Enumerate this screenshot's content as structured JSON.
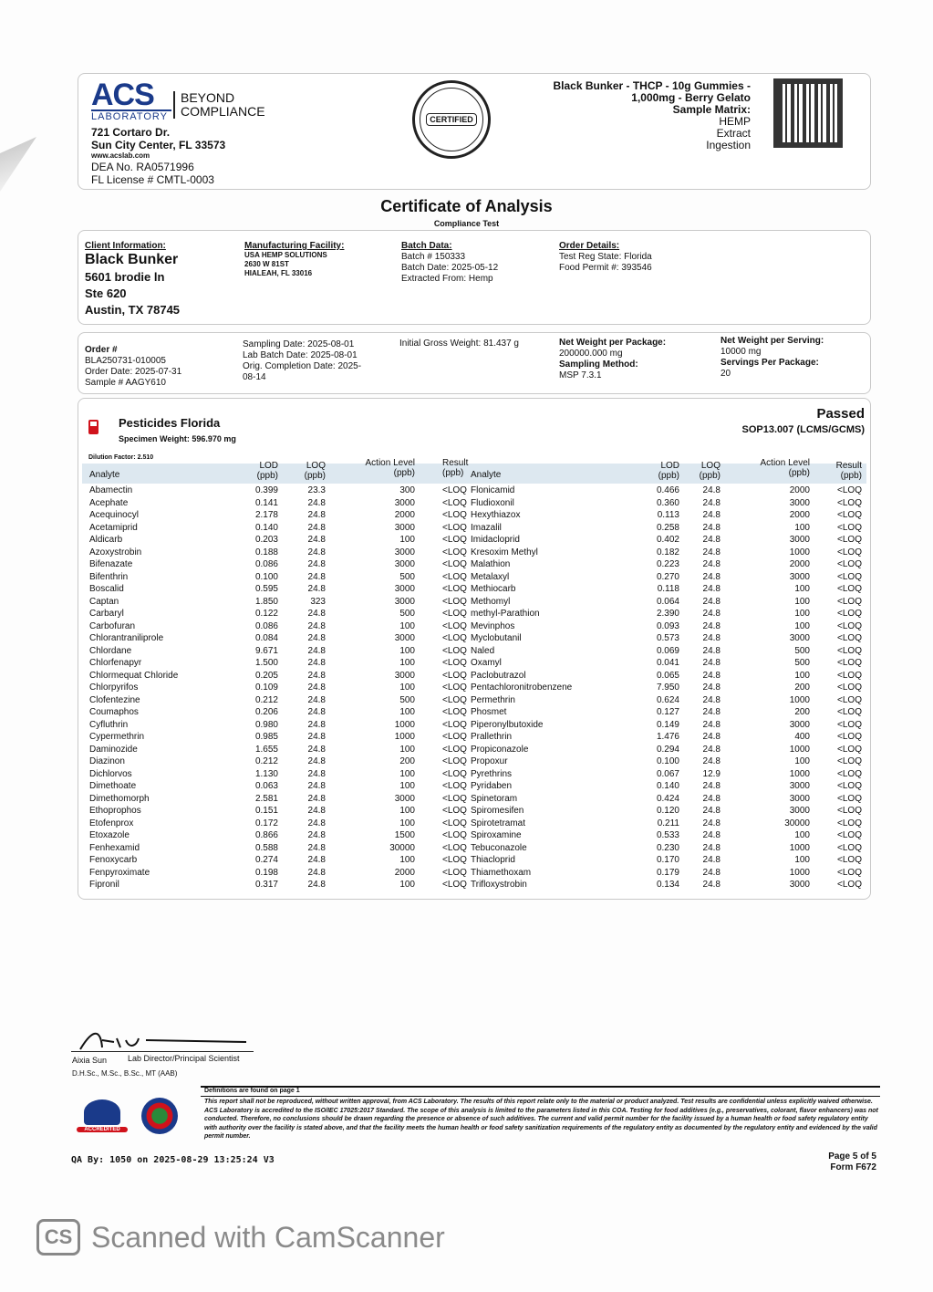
{
  "lab": {
    "logo_text": "ACS",
    "logo_sub": "LABORATORY",
    "tagline": "BEYOND COMPLIANCE",
    "address1": "721 Cortaro Dr.",
    "address2": "Sun City Center, FL 33573",
    "website": "www.acslab.com",
    "dea": "DEA No. RA0571996",
    "license": "FL License # CMTL-0003"
  },
  "seal": {
    "text": "TESTED SAFE CERTIFIED HEMP EDIBLE"
  },
  "product": {
    "name_line1": "Black Bunker - THCP - 10g Gummies -",
    "name_line2": "1,000mg - Berry Gelato",
    "matrix_label": "Sample Matrix:",
    "matrix1": "HEMP",
    "matrix2": "Extract",
    "matrix3": "Ingestion"
  },
  "doc": {
    "title": "Certificate of Analysis",
    "subtitle": "Compliance Test"
  },
  "client": {
    "label": "Client Information:",
    "name": "Black Bunker",
    "addr1": "5601 brodie ln",
    "addr2": "Ste 620",
    "addr3": "Austin, TX 78745"
  },
  "facility": {
    "label": "Manufacturing Facility:",
    "name": "USA HEMP SOLUTIONS",
    "addr1": "2630 W 81ST",
    "addr2": "HIALEAH, FL 33016"
  },
  "batch": {
    "label": "Batch Data:",
    "number": "Batch # 150333",
    "date": "Batch Date: 2025-05-12",
    "extracted": "Extracted From: Hemp"
  },
  "order_details": {
    "label": "Order Details:",
    "state": "Test Reg State: Florida",
    "permit": "Food Permit #: 393546"
  },
  "order": {
    "order_label": "Order #",
    "order_no": "BLA250731-010005",
    "order_date": "Order Date: 2025-07-31",
    "sample": "Sample # AAGY610",
    "sampling_date": "Sampling Date: 2025-08-01",
    "lab_batch_date": "Lab Batch Date: 2025-08-01",
    "completion1": "Orig. Completion Date: 2025-",
    "completion2": "08-14",
    "gross_weight": "Initial Gross Weight: 81.437 g",
    "net_pkg_label": "Net Weight per Package:",
    "net_pkg": "200000.000 mg",
    "sampling_method_label": "Sampling Method:",
    "sampling_method": "MSP 7.3.1",
    "net_serv_label": "Net Weight per Serving:",
    "net_serv": "10000 mg",
    "servings_label": "Servings Per Package:",
    "servings": "20"
  },
  "pesticides": {
    "title": "Pesticides Florida",
    "specimen": "Specimen Weight: 596.970 mg",
    "status": "Passed",
    "method": "SOP13.007 (LCMS/GCMS)",
    "dilution": "Dilution Factor: 2.510",
    "headers": {
      "analyte": "Analyte",
      "lod": "LOD",
      "loq": "LOQ",
      "action": "Action Level",
      "result": "Result",
      "unit": "(ppb)"
    },
    "left": [
      [
        "Abamectin",
        "0.399",
        "23.3",
        "300",
        "<LOQ"
      ],
      [
        "Acephate",
        "0.141",
        "24.8",
        "3000",
        "<LOQ"
      ],
      [
        "Acequinocyl",
        "2.178",
        "24.8",
        "2000",
        "<LOQ"
      ],
      [
        "Acetamiprid",
        "0.140",
        "24.8",
        "3000",
        "<LOQ"
      ],
      [
        "Aldicarb",
        "0.203",
        "24.8",
        "100",
        "<LOQ"
      ],
      [
        "Azoxystrobin",
        "0.188",
        "24.8",
        "3000",
        "<LOQ"
      ],
      [
        "Bifenazate",
        "0.086",
        "24.8",
        "3000",
        "<LOQ"
      ],
      [
        "Bifenthrin",
        "0.100",
        "24.8",
        "500",
        "<LOQ"
      ],
      [
        "Boscalid",
        "0.595",
        "24.8",
        "3000",
        "<LOQ"
      ],
      [
        "Captan",
        "1.850",
        "323",
        "3000",
        "<LOQ"
      ],
      [
        "Carbaryl",
        "0.122",
        "24.8",
        "500",
        "<LOQ"
      ],
      [
        "Carbofuran",
        "0.086",
        "24.8",
        "100",
        "<LOQ"
      ],
      [
        "Chlorantraniliprole",
        "0.084",
        "24.8",
        "3000",
        "<LOQ"
      ],
      [
        "Chlordane",
        "9.671",
        "24.8",
        "100",
        "<LOQ"
      ],
      [
        "Chlorfenapyr",
        "1.500",
        "24.8",
        "100",
        "<LOQ"
      ],
      [
        "Chlormequat Chloride",
        "0.205",
        "24.8",
        "3000",
        "<LOQ"
      ],
      [
        "Chlorpyrifos",
        "0.109",
        "24.8",
        "100",
        "<LOQ"
      ],
      [
        "Clofentezine",
        "0.212",
        "24.8",
        "500",
        "<LOQ"
      ],
      [
        "Coumaphos",
        "0.206",
        "24.8",
        "100",
        "<LOQ"
      ],
      [
        "Cyfluthrin",
        "0.980",
        "24.8",
        "1000",
        "<LOQ"
      ],
      [
        "Cypermethrin",
        "0.985",
        "24.8",
        "1000",
        "<LOQ"
      ],
      [
        "Daminozide",
        "1.655",
        "24.8",
        "100",
        "<LOQ"
      ],
      [
        "Diazinon",
        "0.212",
        "24.8",
        "200",
        "<LOQ"
      ],
      [
        "Dichlorvos",
        "1.130",
        "24.8",
        "100",
        "<LOQ"
      ],
      [
        "Dimethoate",
        "0.063",
        "24.8",
        "100",
        "<LOQ"
      ],
      [
        "Dimethomorph",
        "2.581",
        "24.8",
        "3000",
        "<LOQ"
      ],
      [
        "Ethoprophos",
        "0.151",
        "24.8",
        "100",
        "<LOQ"
      ],
      [
        "Etofenprox",
        "0.172",
        "24.8",
        "100",
        "<LOQ"
      ],
      [
        "Etoxazole",
        "0.866",
        "24.8",
        "1500",
        "<LOQ"
      ],
      [
        "Fenhexamid",
        "0.588",
        "24.8",
        "30000",
        "<LOQ"
      ],
      [
        "Fenoxycarb",
        "0.274",
        "24.8",
        "100",
        "<LOQ"
      ],
      [
        "Fenpyroximate",
        "0.198",
        "24.8",
        "2000",
        "<LOQ"
      ],
      [
        "Fipronil",
        "0.317",
        "24.8",
        "100",
        "<LOQ"
      ]
    ],
    "right": [
      [
        "Flonicamid",
        "0.466",
        "24.8",
        "2000",
        "<LOQ"
      ],
      [
        "Fludioxonil",
        "0.360",
        "24.8",
        "3000",
        "<LOQ"
      ],
      [
        "Hexythiazox",
        "0.113",
        "24.8",
        "2000",
        "<LOQ"
      ],
      [
        "Imazalil",
        "0.258",
        "24.8",
        "100",
        "<LOQ"
      ],
      [
        "Imidacloprid",
        "0.402",
        "24.8",
        "3000",
        "<LOQ"
      ],
      [
        "Kresoxim Methyl",
        "0.182",
        "24.8",
        "1000",
        "<LOQ"
      ],
      [
        "Malathion",
        "0.223",
        "24.8",
        "2000",
        "<LOQ"
      ],
      [
        "Metalaxyl",
        "0.270",
        "24.8",
        "3000",
        "<LOQ"
      ],
      [
        "Methiocarb",
        "0.118",
        "24.8",
        "100",
        "<LOQ"
      ],
      [
        "Methomyl",
        "0.064",
        "24.8",
        "100",
        "<LOQ"
      ],
      [
        "methyl-Parathion",
        "2.390",
        "24.8",
        "100",
        "<LOQ"
      ],
      [
        "Mevinphos",
        "0.093",
        "24.8",
        "100",
        "<LOQ"
      ],
      [
        "Myclobutanil",
        "0.573",
        "24.8",
        "3000",
        "<LOQ"
      ],
      [
        "Naled",
        "0.069",
        "24.8",
        "500",
        "<LOQ"
      ],
      [
        "Oxamyl",
        "0.041",
        "24.8",
        "500",
        "<LOQ"
      ],
      [
        "Paclobutrazol",
        "0.065",
        "24.8",
        "100",
        "<LOQ"
      ],
      [
        "Pentachloronitrobenzene",
        "7.950",
        "24.8",
        "200",
        "<LOQ"
      ],
      [
        "Permethrin",
        "0.624",
        "24.8",
        "1000",
        "<LOQ"
      ],
      [
        "Phosmet",
        "0.127",
        "24.8",
        "200",
        "<LOQ"
      ],
      [
        "Piperonylbutoxide",
        "0.149",
        "24.8",
        "3000",
        "<LOQ"
      ],
      [
        "Prallethrin",
        "1.476",
        "24.8",
        "400",
        "<LOQ"
      ],
      [
        "Propiconazole",
        "0.294",
        "24.8",
        "1000",
        "<LOQ"
      ],
      [
        "Propoxur",
        "0.100",
        "24.8",
        "100",
        "<LOQ"
      ],
      [
        "Pyrethrins",
        "0.067",
        "12.9",
        "1000",
        "<LOQ"
      ],
      [
        "Pyridaben",
        "0.140",
        "24.8",
        "3000",
        "<LOQ"
      ],
      [
        "Spinetoram",
        "0.424",
        "24.8",
        "3000",
        "<LOQ"
      ],
      [
        "Spiromesifen",
        "0.120",
        "24.8",
        "3000",
        "<LOQ"
      ],
      [
        "Spirotetramat",
        "0.211",
        "24.8",
        "30000",
        "<LOQ"
      ],
      [
        "Spiroxamine",
        "0.533",
        "24.8",
        "100",
        "<LOQ"
      ],
      [
        "Tebuconazole",
        "0.230",
        "24.8",
        "1000",
        "<LOQ"
      ],
      [
        "Thiacloprid",
        "0.170",
        "24.8",
        "100",
        "<LOQ"
      ],
      [
        "Thiamethoxam",
        "0.179",
        "24.8",
        "1000",
        "<LOQ"
      ],
      [
        "Trifloxystrobin",
        "0.134",
        "24.8",
        "3000",
        "<LOQ"
      ]
    ]
  },
  "signature": {
    "name": "Aixia Sun",
    "role": "Lab Director/Principal Scientist",
    "credentials": "D.H.Sc., M.Sc., B.Sc., MT (AAB)"
  },
  "footer": {
    "definitions": "Definitions are found on page 1",
    "disclaimer": "This report shall not be reproduced, without written approval, from ACS Laboratory. The results of this report relate only to the material or product analyzed. Test results are confidential unless explicitly waived otherwise. ACS Laboratory is accredited to the ISO/IEC 17025:2017 Standard. The scope of this analysis is limited to the parameters listed in this COA. Testing for food additives (e.g., preservatives, colorant, flavor enhancers) was not conducted. Therefore, no conclusions should be drawn regarding the presence or absence of such additives. The current and valid permit number for the facility issued by a human health or food safety regulatory entity with authority over the facility is stated above, and that the facility meets the human health or food safety sanitization requirements of the regulatory entity as documented by the regulatory entity and evidenced by the valid permit number.",
    "accredited": "ACCREDITED",
    "qa": "QA By: 1050 on 2025-08-29 13:25:24 V3",
    "page": "Page 5 of 5",
    "form": "Form F672"
  },
  "watermark": {
    "cs": "CS",
    "text": "Scanned with CamScanner"
  },
  "colors": {
    "accent": "#1a3a8a",
    "status_red": "#d0121b",
    "header_band": "#dde8f0"
  }
}
